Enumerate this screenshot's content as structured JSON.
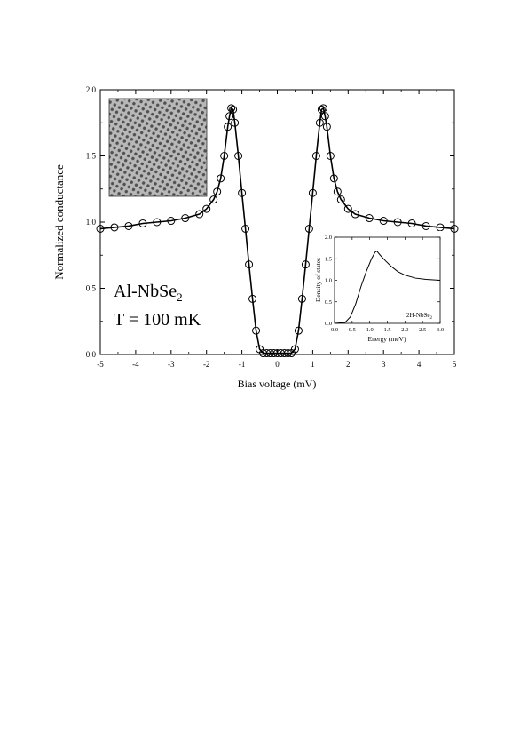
{
  "chart_data": {
    "main": {
      "type": "scatter",
      "xlabel": "Bias voltage (mV)",
      "ylabel": "Normalized conductance",
      "xlim": [
        -5,
        5
      ],
      "ylim": [
        0,
        2
      ],
      "x_ticks": [
        -5,
        -4,
        -3,
        -2,
        -1,
        0,
        1,
        2,
        3,
        4,
        5
      ],
      "y_ticks": [
        "0.0",
        "0.5",
        "1.0",
        "1.5",
        "2.0"
      ],
      "annotation_sample": "Al-NbSe",
      "annotation_subscript": "2",
      "annotation_temperature": "T = 100 mK",
      "series": [
        {
          "marker": "open-circle",
          "x": [
            -5.0,
            -4.6,
            -4.2,
            -3.8,
            -3.4,
            -3.0,
            -2.6,
            -2.2,
            -2.0,
            -1.8,
            -1.7,
            -1.6,
            -1.5,
            -1.4,
            -1.35,
            -1.3,
            -1.25,
            -1.2,
            -1.1,
            -1.0,
            -0.9,
            -0.8,
            -0.7,
            -0.6,
            -0.5,
            -0.4,
            -0.3,
            -0.2,
            -0.1,
            0.0,
            0.1,
            0.2,
            0.3,
            0.4,
            0.5,
            0.6,
            0.7,
            0.8,
            0.9,
            1.0,
            1.1,
            1.2,
            1.25,
            1.3,
            1.35,
            1.4,
            1.5,
            1.6,
            1.7,
            1.8,
            2.0,
            2.2,
            2.6,
            3.0,
            3.4,
            3.8,
            4.2,
            4.6,
            5.0
          ],
          "y": [
            0.95,
            0.96,
            0.97,
            0.99,
            1.0,
            1.01,
            1.03,
            1.06,
            1.1,
            1.17,
            1.23,
            1.33,
            1.5,
            1.72,
            1.8,
            1.86,
            1.85,
            1.75,
            1.5,
            1.22,
            0.95,
            0.68,
            0.42,
            0.18,
            0.04,
            0.01,
            0.01,
            0.01,
            0.01,
            0.01,
            0.01,
            0.01,
            0.01,
            0.01,
            0.04,
            0.18,
            0.42,
            0.68,
            0.95,
            1.22,
            1.5,
            1.75,
            1.85,
            1.86,
            1.8,
            1.72,
            1.5,
            1.33,
            1.23,
            1.17,
            1.1,
            1.06,
            1.03,
            1.01,
            1.0,
            0.99,
            0.97,
            0.96,
            0.95
          ]
        },
        {
          "marker": "line",
          "x": [
            -5.0,
            -4.6,
            -4.2,
            -3.8,
            -3.4,
            -3.0,
            -2.6,
            -2.2,
            -2.0,
            -1.8,
            -1.7,
            -1.6,
            -1.5,
            -1.4,
            -1.35,
            -1.3,
            -1.25,
            -1.2,
            -1.1,
            -1.0,
            -0.9,
            -0.8,
            -0.7,
            -0.6,
            -0.5,
            -0.4,
            -0.3,
            -0.2,
            -0.1,
            0.0,
            0.1,
            0.2,
            0.3,
            0.4,
            0.5,
            0.6,
            0.7,
            0.8,
            0.9,
            1.0,
            1.1,
            1.2,
            1.25,
            1.3,
            1.35,
            1.4,
            1.5,
            1.6,
            1.7,
            1.8,
            2.0,
            2.2,
            2.6,
            3.0,
            3.4,
            3.8,
            4.2,
            4.6,
            5.0
          ],
          "y": [
            0.95,
            0.96,
            0.97,
            0.99,
            1.0,
            1.01,
            1.03,
            1.06,
            1.1,
            1.17,
            1.23,
            1.33,
            1.5,
            1.72,
            1.8,
            1.86,
            1.85,
            1.75,
            1.5,
            1.22,
            0.95,
            0.68,
            0.42,
            0.18,
            0.04,
            0.01,
            0.01,
            0.01,
            0.01,
            0.01,
            0.01,
            0.01,
            0.01,
            0.01,
            0.04,
            0.18,
            0.42,
            0.68,
            0.95,
            1.22,
            1.5,
            1.75,
            1.85,
            1.86,
            1.8,
            1.72,
            1.5,
            1.33,
            1.23,
            1.17,
            1.1,
            1.06,
            1.03,
            1.01,
            1.0,
            0.99,
            0.97,
            0.96,
            0.95
          ]
        }
      ]
    },
    "inset": {
      "type": "line",
      "xlabel": "Energy (meV)",
      "ylabel": "Density of states",
      "xlim": [
        0,
        3
      ],
      "ylim": [
        0,
        2
      ],
      "x_ticks": [
        "0.0",
        "0.5",
        "1.0",
        "1.5",
        "2.0",
        "2.5",
        "3.0"
      ],
      "y_ticks": [
        "0.0",
        "0.5",
        "1.0",
        "1.5",
        "2.0"
      ],
      "label": "2H-NbSe",
      "label_subscript": "2",
      "x": [
        0.0,
        0.3,
        0.45,
        0.6,
        0.75,
        0.9,
        1.05,
        1.15,
        1.2,
        1.3,
        1.45,
        1.6,
        1.8,
        2.0,
        2.3,
        2.6,
        3.0
      ],
      "y": [
        0.0,
        0.02,
        0.15,
        0.45,
        0.85,
        1.2,
        1.5,
        1.65,
        1.68,
        1.58,
        1.45,
        1.33,
        1.2,
        1.12,
        1.05,
        1.02,
        1.0
      ]
    }
  }
}
